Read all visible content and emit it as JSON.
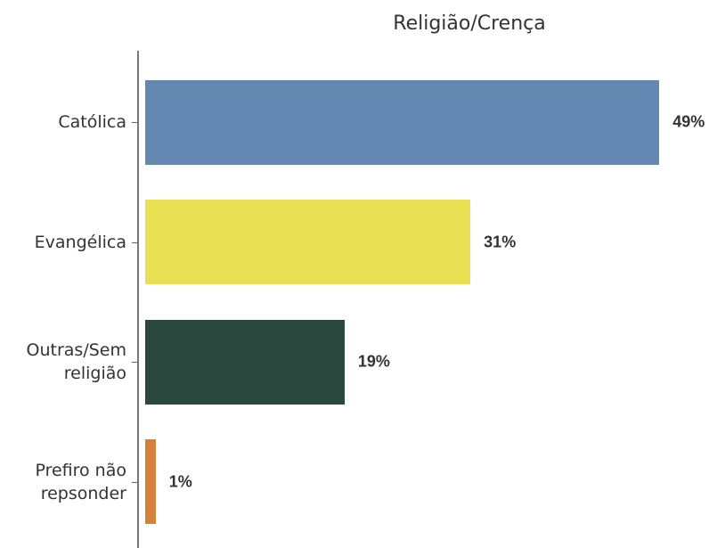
{
  "chart_data": {
    "type": "hbar",
    "title": "Religião/Crença",
    "categories": [
      "Católica",
      "Evangélica",
      "Outras/Sem\nreligião",
      "Prefiro não\nrepsonder"
    ],
    "values": [
      49,
      31,
      19,
      1
    ],
    "value_labels": [
      "49%",
      "31%",
      "19%",
      "1%"
    ],
    "colors": [
      "#6488b1",
      "#e8df52",
      "#2a483d",
      "#d4823a"
    ]
  }
}
